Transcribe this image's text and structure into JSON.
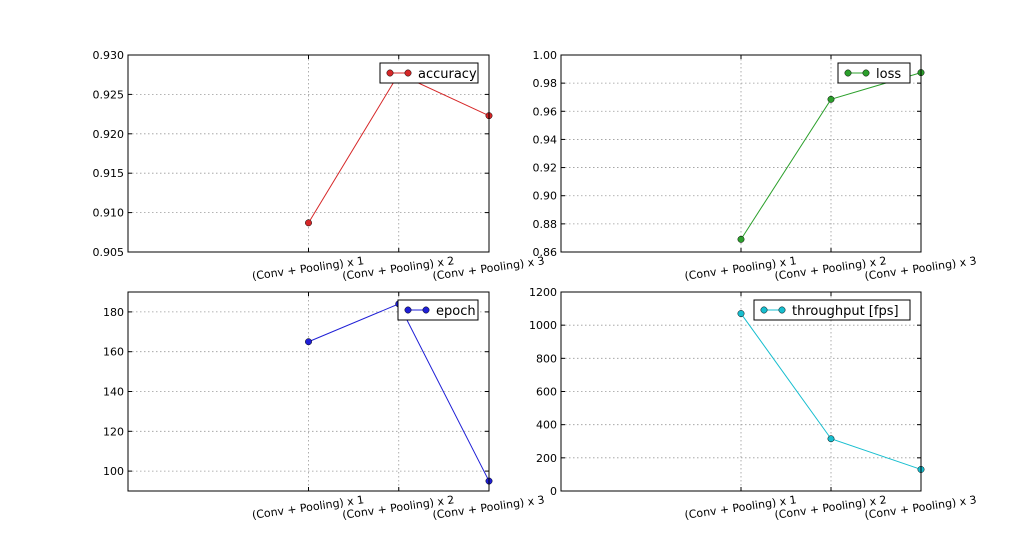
{
  "chart_data": [
    {
      "type": "line",
      "categories": [
        "(Conv + Pooling) x 1",
        "(Conv + Pooling) x 2",
        "(Conv + Pooling) x 3"
      ],
      "series": [
        {
          "name": "accuracy",
          "values": [
            0.9087,
            0.9276,
            0.9223
          ]
        }
      ],
      "color": "#d62728",
      "ylim": [
        0.905,
        0.93
      ],
      "yticks": [
        "0.905",
        "0.910",
        "0.915",
        "0.920",
        "0.925",
        "0.930"
      ],
      "grid": true,
      "legend": "top-right"
    },
    {
      "type": "line",
      "categories": [
        "(Conv + Pooling) x 1",
        "(Conv + Pooling) x 2",
        "(Conv + Pooling) x 3"
      ],
      "series": [
        {
          "name": "loss",
          "values": [
            0.869,
            0.9685,
            0.9875
          ]
        }
      ],
      "color": "#2ca02c",
      "ylim": [
        0.86,
        1.0
      ],
      "yticks": [
        "0.86",
        "0.88",
        "0.90",
        "0.92",
        "0.94",
        "0.96",
        "0.98",
        "1.00"
      ],
      "grid": true,
      "legend": "top-right"
    },
    {
      "type": "line",
      "categories": [
        "(Conv + Pooling) x 1",
        "(Conv + Pooling) x 2",
        "(Conv + Pooling) x 3"
      ],
      "series": [
        {
          "name": "epoch",
          "values": [
            165,
            184,
            95
          ]
        }
      ],
      "color": "#1f1fd6",
      "ylim": [
        90,
        190
      ],
      "yticks": [
        "100",
        "120",
        "140",
        "160",
        "180"
      ],
      "grid": true,
      "legend": "top-right"
    },
    {
      "type": "line",
      "categories": [
        "(Conv + Pooling) x 1",
        "(Conv + Pooling) x 2",
        "(Conv + Pooling) x 3"
      ],
      "series": [
        {
          "name": "throughput [fps]",
          "values": [
            1070,
            315,
            130
          ]
        }
      ],
      "color": "#17becf",
      "ylim": [
        0,
        1200
      ],
      "yticks": [
        "0",
        "200",
        "400",
        "600",
        "800",
        "1000",
        "1200"
      ],
      "grid": true,
      "legend": "top-right"
    }
  ]
}
